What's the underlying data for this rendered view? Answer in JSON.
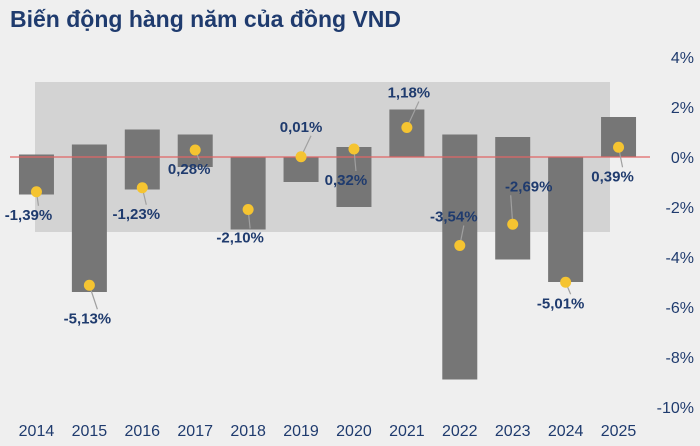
{
  "chart_data": {
    "type": "bar",
    "title": "Biến động hàng năm của đồng VND",
    "categories": [
      "2014",
      "2015",
      "2016",
      "2017",
      "2018",
      "2019",
      "2020",
      "2021",
      "2022",
      "2023",
      "2024",
      "2025"
    ],
    "series": [
      {
        "range_low": [
          -1.5,
          -5.4,
          -1.3,
          -0.4,
          -2.9,
          -1.0,
          -2.0,
          0.0,
          -8.9,
          -4.1,
          -5.0,
          0.0
        ],
        "range_high": [
          0.1,
          0.5,
          1.1,
          0.9,
          0.0,
          0.0,
          0.4,
          1.9,
          0.9,
          0.8,
          0.0,
          1.6
        ]
      },
      {
        "values": [
          -1.39,
          -5.13,
          -1.23,
          0.28,
          -2.1,
          0.01,
          0.32,
          1.18,
          -3.54,
          -2.69,
          -5.01,
          0.39
        ],
        "labels": [
          "-1,39%",
          "-5,13%",
          "-1,23%",
          "0,28%",
          "-2,10%",
          "0,01%",
          "0,32%",
          "1,18%",
          "-3,54%",
          "-2,69%",
          "-5,01%",
          "0,39%"
        ]
      }
    ],
    "band": {
      "low": -3,
      "high": 3
    },
    "yaxis": {
      "min": -10,
      "max": 4,
      "step": 2,
      "tick_labels": [
        "4%",
        "2%",
        "0%",
        "-2%",
        "-4%",
        "-6%",
        "-8%",
        "-10%"
      ],
      "position": "right"
    },
    "grid": false,
    "colors": {
      "bar": "#767676",
      "band": "#d3d3d3",
      "point": "#f5c431",
      "zero_line": "#e06666",
      "text": "#1f3b6e",
      "leader": "#a0a0a0"
    }
  }
}
